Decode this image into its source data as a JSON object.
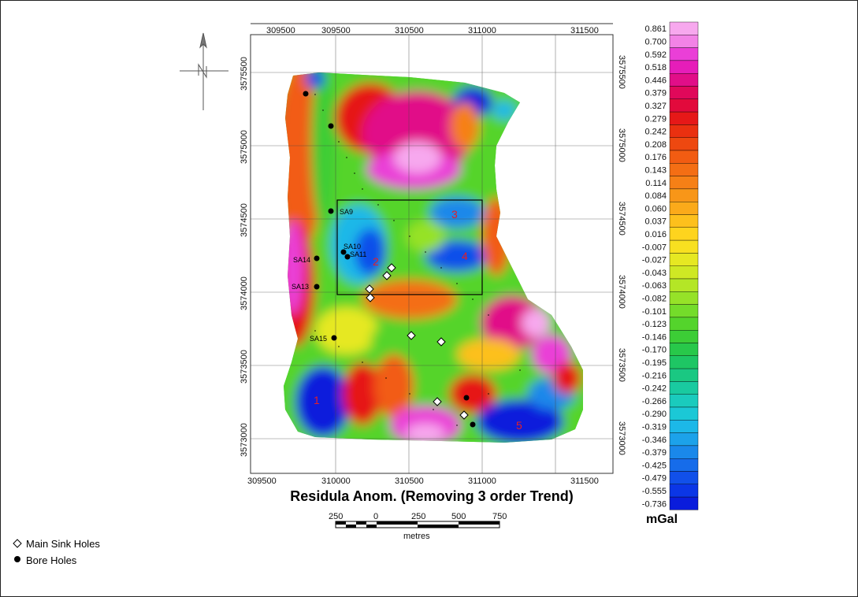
{
  "map": {
    "title": "Residula Anom. (Removing 3 order Trend)",
    "x_ticks": [
      "309500",
      "310000",
      "310500",
      "311000",
      "311500"
    ],
    "y_ticks": [
      "3575500",
      "3575000",
      "3574500",
      "3574000",
      "3573500",
      "3573000"
    ],
    "zone_labels": [
      "1",
      "2",
      "3",
      "4",
      "5"
    ],
    "bore_labels": [
      "SA9",
      "SA10",
      "SA11",
      "SA14",
      "SA13",
      "SA15"
    ]
  },
  "scale_bar": {
    "labels": [
      "250",
      "0",
      "250",
      "500",
      "750"
    ],
    "unit": "metres"
  },
  "colorbar": {
    "unit": "mGal",
    "values": [
      "0.861",
      "0.700",
      "0.592",
      "0.518",
      "0.446",
      "0.379",
      "0.327",
      "0.279",
      "0.242",
      "0.208",
      "0.176",
      "0.143",
      "0.114",
      "0.084",
      "0.060",
      "0.037",
      "0.016",
      "-0.007",
      "-0.027",
      "-0.043",
      "-0.063",
      "-0.082",
      "-0.101",
      "-0.123",
      "-0.146",
      "-0.170",
      "-0.195",
      "-0.216",
      "-0.242",
      "-0.266",
      "-0.290",
      "-0.319",
      "-0.346",
      "-0.379",
      "-0.425",
      "-0.479",
      "-0.555",
      "-0.736"
    ],
    "colors": [
      "#f7a8ee",
      "#f283e6",
      "#ea3fd7",
      "#e61db9",
      "#e10e88",
      "#e0085a",
      "#e20a3c",
      "#e61818",
      "#ea3010",
      "#ee4810",
      "#f25c12",
      "#f46e14",
      "#f68016",
      "#f89618",
      "#fbaa1a",
      "#fdc01c",
      "#fed41e",
      "#f8e020",
      "#e6e822",
      "#cfe824",
      "#b4e626",
      "#96e228",
      "#74dc2a",
      "#54d42c",
      "#3ccd36",
      "#28c84a",
      "#1ec664",
      "#1ac882",
      "#19caa0",
      "#1acbbd",
      "#1bc8d6",
      "#1cb8e8",
      "#1ca2ea",
      "#1a88ea",
      "#166cea",
      "#1150ea",
      "#0b36e6",
      "#0a1cdc"
    ]
  },
  "legend": {
    "sink_holes": "Main Sink Holes",
    "bore_holes": "Bore Holes"
  }
}
